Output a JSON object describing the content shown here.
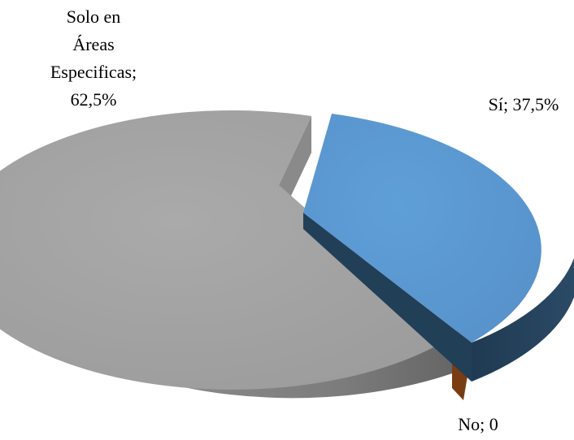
{
  "chart_data": {
    "type": "pie",
    "style": "3d-exploded",
    "slices": [
      {
        "label": "Sí",
        "value": 37.5,
        "display": "Sí; 37,5%",
        "color": "#5b9bd5",
        "side_color": "#234058",
        "exploded": true
      },
      {
        "label": "No",
        "value": 0,
        "display": "No; 0",
        "color": "#c55a11",
        "side_color": "#6e3510",
        "exploded": false
      },
      {
        "label": "Solo en Áreas Especificas",
        "value": 62.5,
        "display_lines": [
          "Solo en",
          "Áreas",
          "Especificas;",
          "62,5%"
        ],
        "color": "#a5a5a5",
        "side_color": "#7a7a7a",
        "exploded": false
      }
    ],
    "title": "",
    "legend": "none"
  }
}
